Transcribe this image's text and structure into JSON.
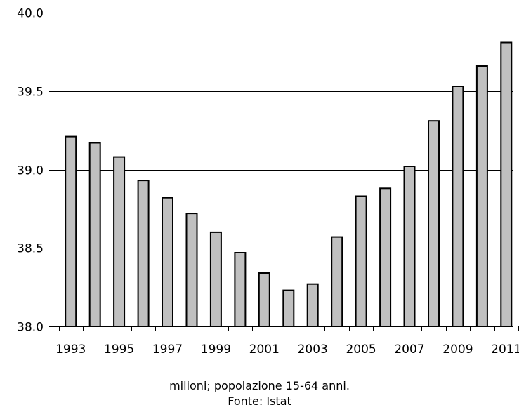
{
  "chart_data": {
    "type": "bar",
    "categories": [
      "1993",
      "1994",
      "1995",
      "1996",
      "1997",
      "1998",
      "1999",
      "2000",
      "2001",
      "2002",
      "2003",
      "2004",
      "2005",
      "2006",
      "2007",
      "2008",
      "2009",
      "2010",
      "2011"
    ],
    "values": [
      39.21,
      39.17,
      39.08,
      38.93,
      38.82,
      38.72,
      38.6,
      38.47,
      38.34,
      38.23,
      38.27,
      38.57,
      38.83,
      38.88,
      39.02,
      39.31,
      39.53,
      39.66,
      39.81
    ],
    "ylim": [
      38.0,
      40.0
    ],
    "yticks": [
      "38.0",
      "38.5",
      "39.0",
      "39.5",
      "40.0"
    ],
    "xtick_labels": [
      "1993",
      "1995",
      "1997",
      "1999",
      "2001",
      "2003",
      "2005",
      "2007",
      "2009",
      "2011"
    ],
    "grid": true,
    "colors": {
      "bar_fill": "#c0c0c0",
      "bar_stroke": "#000000",
      "grid": "#000000"
    }
  },
  "caption": {
    "line1": "milioni; popolazione 15-64 anni.",
    "line2": "Fonte: Istat"
  }
}
